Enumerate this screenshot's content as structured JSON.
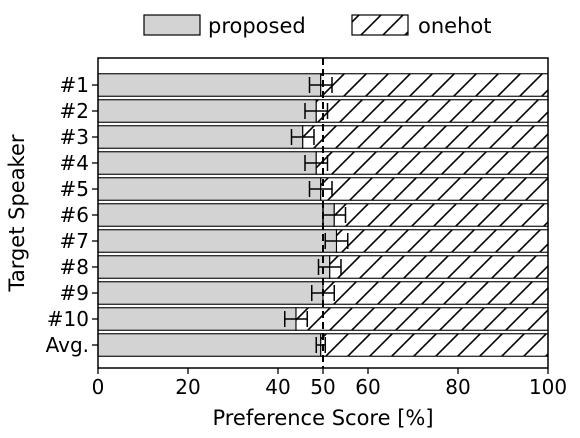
{
  "chart_data": {
    "type": "bar",
    "orientation": "horizontal",
    "stacked": true,
    "categories": [
      "#1",
      "#2",
      "#3",
      "#4",
      "#5",
      "#6",
      "#7",
      "#8",
      "#9",
      "#10",
      "Avg."
    ],
    "series": [
      {
        "name": "proposed",
        "values": [
          49.5,
          48.5,
          45.5,
          48.5,
          49.5,
          52.5,
          53.0,
          51.5,
          50.0,
          44.0,
          49.5
        ],
        "errors": [
          2.5,
          2.5,
          2.5,
          2.5,
          2.5,
          2.5,
          2.5,
          2.5,
          2.5,
          2.5,
          1.0
        ],
        "fill": "#d3d3d3",
        "pattern": "none"
      },
      {
        "name": "onehot",
        "values": [
          50.5,
          51.5,
          54.5,
          51.5,
          50.5,
          47.5,
          47.0,
          48.5,
          50.0,
          56.0,
          50.5
        ],
        "fill": "#ffffff",
        "pattern": "diagonal-hatch"
      }
    ],
    "xlabel": "Preference Score [%]",
    "ylabel": "Target Speaker",
    "xlim": [
      0,
      100
    ],
    "xticks": [
      0,
      20,
      40,
      50,
      60,
      80,
      100
    ],
    "reference_line": 50,
    "grid": false,
    "legend_position": "top"
  }
}
